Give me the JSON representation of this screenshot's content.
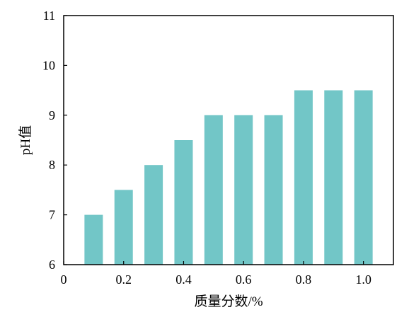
{
  "chart_data": {
    "type": "bar",
    "x": [
      0.1,
      0.2,
      0.3,
      0.4,
      0.5,
      0.6,
      0.7,
      0.8,
      0.9,
      1.0
    ],
    "values": [
      7.0,
      7.5,
      8.0,
      8.5,
      9.0,
      9.0,
      9.0,
      9.5,
      9.5,
      9.5
    ],
    "xlabel": "质量分数/%",
    "ylabel": "pH值",
    "xlim": [
      0,
      1.1
    ],
    "ylim": [
      6,
      11
    ],
    "xticks": [
      "0",
      "0.2",
      "0.4",
      "0.6",
      "0.8",
      "1.0"
    ],
    "xtick_values": [
      0,
      0.2,
      0.4,
      0.6,
      0.8,
      1.0
    ],
    "yticks": [
      "6",
      "7",
      "8",
      "9",
      "10",
      "11"
    ],
    "ytick_values": [
      6,
      7,
      8,
      9,
      10,
      11
    ],
    "bar_color": "#72c6c7",
    "grid": false,
    "legend": "none"
  }
}
